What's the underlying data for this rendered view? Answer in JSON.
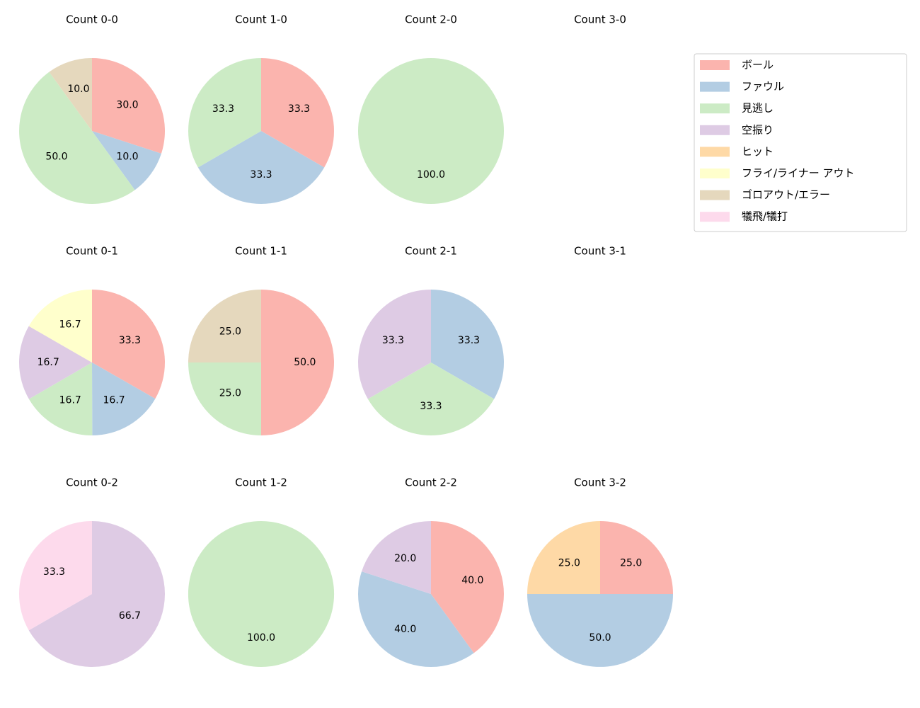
{
  "chart_data": [
    {
      "type": "pie",
      "title": "Count 0-0",
      "categories": [
        "ボール",
        "ファウル",
        "見逃し",
        "ゴロアウト/エラー"
      ],
      "values": [
        30,
        10,
        50,
        10
      ],
      "value_labels": [
        "30.0",
        "10.0",
        "50.0",
        "10.0"
      ]
    },
    {
      "type": "pie",
      "title": "Count 1-0",
      "categories": [
        "ボール",
        "ファウル",
        "見逃し"
      ],
      "values": [
        33.3,
        33.3,
        33.3
      ]
    },
    {
      "type": "pie",
      "title": "Count 2-0",
      "categories": [
        "見逃し"
      ],
      "values": [
        100
      ],
      "value_labels": [
        "100.0"
      ]
    },
    {
      "type": "pie",
      "title": "Count 3-0"
    },
    {
      "type": "pie",
      "title": "Count 0-1",
      "categories": [
        "ボール",
        "ファウル",
        "見逃し",
        "空振り",
        "フライ/ライナー アウト"
      ],
      "values": [
        33.3,
        16.7,
        16.7,
        16.7,
        16.7
      ]
    },
    {
      "type": "pie",
      "title": "Count 1-1",
      "categories": [
        "ボール",
        "見逃し",
        "ゴロアウト/エラー"
      ],
      "values": [
        50,
        25,
        25
      ],
      "value_labels": [
        "50.0",
        "25.0",
        "25.0"
      ]
    },
    {
      "type": "pie",
      "title": "Count 2-1",
      "categories": [
        "ファウル",
        "見逃し",
        "空振り"
      ],
      "values": [
        33.3,
        33.3,
        33.3
      ]
    },
    {
      "type": "pie",
      "title": "Count 3-1"
    },
    {
      "type": "pie",
      "title": "Count 0-2",
      "categories": [
        "空振り",
        "犠飛/犠打"
      ],
      "values": [
        66.7,
        33.3
      ]
    },
    {
      "type": "pie",
      "title": "Count 1-2",
      "categories": [
        "見逃し"
      ],
      "values": [
        100
      ],
      "value_labels": [
        "100.0"
      ]
    },
    {
      "type": "pie",
      "title": "Count 2-2",
      "categories": [
        "ボール",
        "ファウル",
        "空振り"
      ],
      "values": [
        40,
        40,
        20
      ],
      "value_labels": [
        "40.0",
        "40.0",
        "20.0"
      ]
    },
    {
      "type": "pie",
      "title": "Count 3-2",
      "categories": [
        "ボール",
        "ファウル",
        "ヒット"
      ],
      "values": [
        25,
        50,
        25
      ],
      "value_labels": [
        "25.0",
        "50.0",
        "25.0"
      ]
    }
  ],
  "legend": {
    "entries": [
      {
        "name": "ボール",
        "color": "#fbb4ae"
      },
      {
        "name": "ファウル",
        "color": "#b3cde3"
      },
      {
        "name": "見逃し",
        "color": "#ccebc5"
      },
      {
        "name": "空振り",
        "color": "#decbe4"
      },
      {
        "name": "ヒット",
        "color": "#fed9a6"
      },
      {
        "name": "フライ/ライナー アウト",
        "color": "#ffffcc"
      },
      {
        "name": "ゴロアウト/エラー",
        "color": "#e5d8bd"
      },
      {
        "name": "犠飛/犠打",
        "color": "#fddaec"
      }
    ]
  }
}
